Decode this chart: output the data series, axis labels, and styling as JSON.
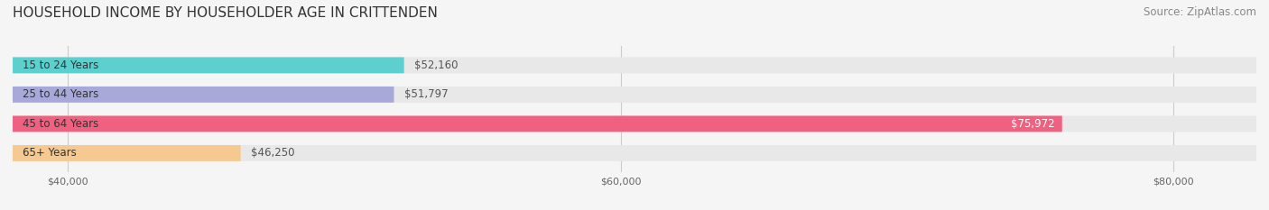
{
  "title": "HOUSEHOLD INCOME BY HOUSEHOLDER AGE IN CRITTENDEN",
  "source": "Source: ZipAtlas.com",
  "categories": [
    "15 to 24 Years",
    "25 to 44 Years",
    "45 to 64 Years",
    "65+ Years"
  ],
  "values": [
    52160,
    51797,
    75972,
    46250
  ],
  "bar_colors": [
    "#5ecfcf",
    "#a9a9d9",
    "#f06080",
    "#f5c990"
  ],
  "bar_bg_color": "#e8e8e8",
  "value_labels": [
    "$52,160",
    "$51,797",
    "$75,972",
    "$46,250"
  ],
  "xmin": 38000,
  "xmax": 83000,
  "xticks": [
    40000,
    60000,
    80000
  ],
  "xtick_labels": [
    "$40,000",
    "$60,000",
    "$80,000"
  ],
  "background_color": "#f5f5f5",
  "bar_height": 0.55,
  "title_fontsize": 11,
  "label_fontsize": 8.5,
  "value_fontsize": 8.5,
  "source_fontsize": 8.5
}
